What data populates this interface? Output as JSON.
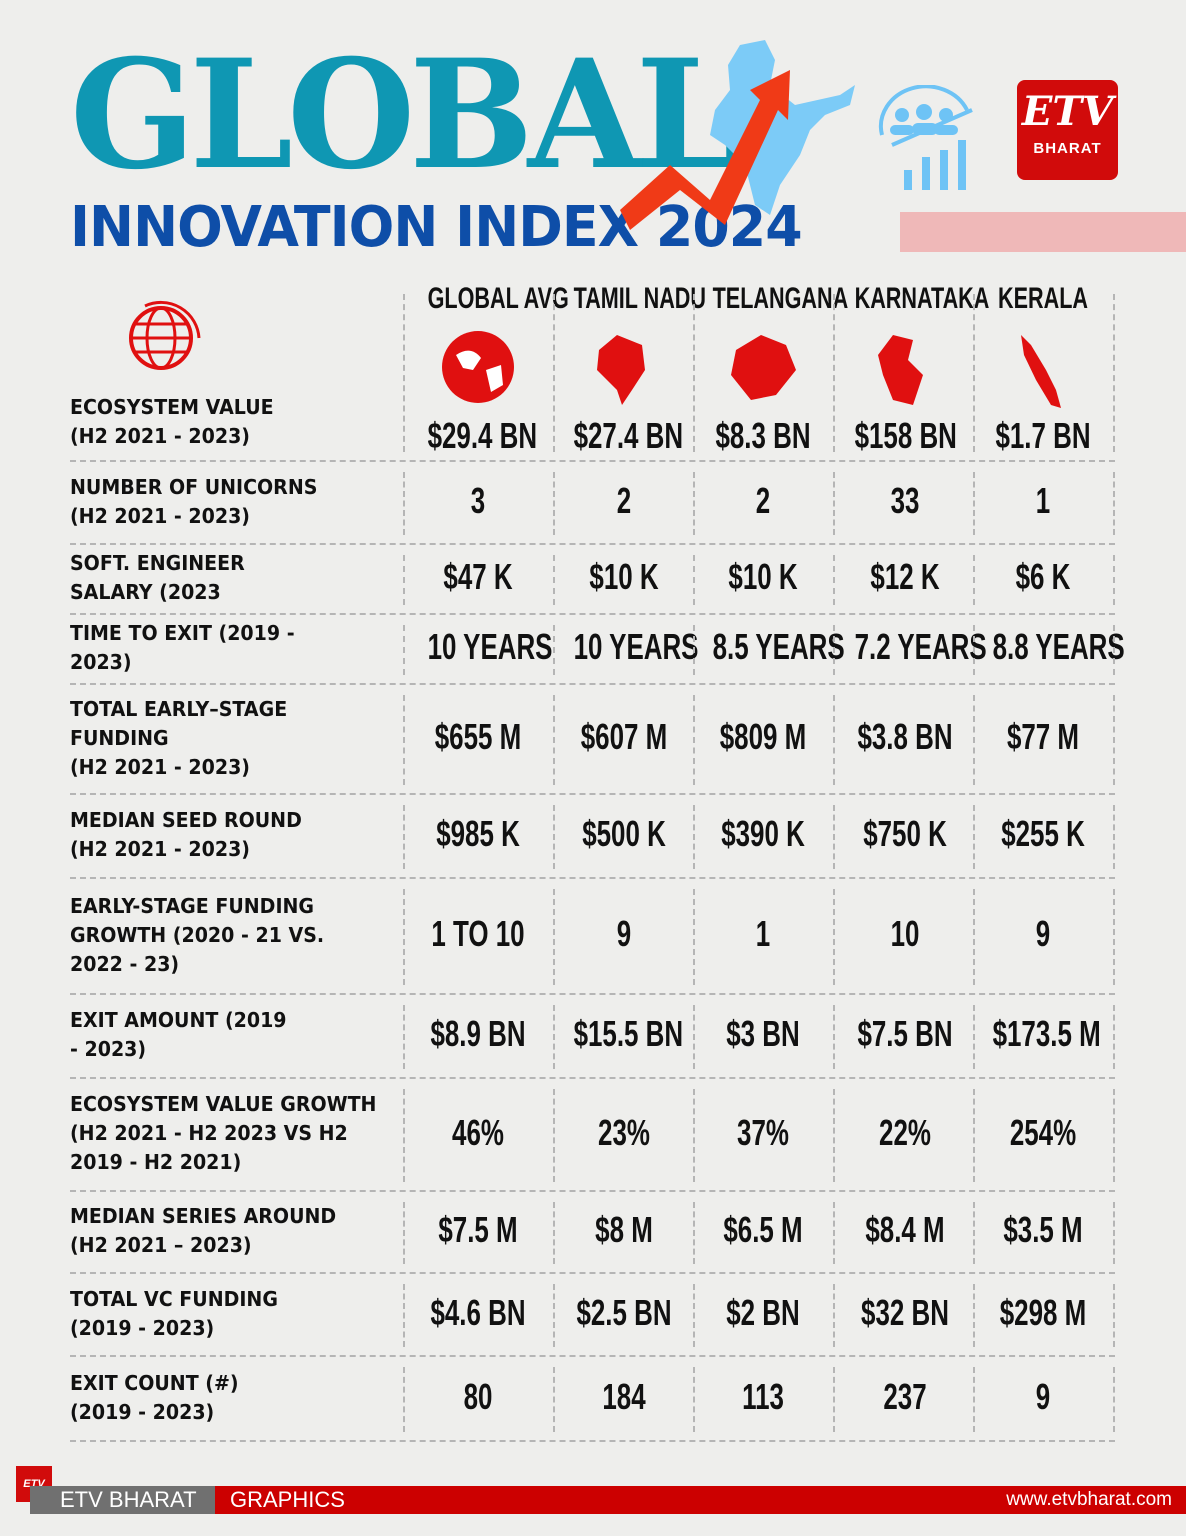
{
  "header": {
    "title_line1": "GLOBAL",
    "title_line2": "INNOVATION INDEX 2024",
    "logo_text": "BHARAT",
    "logo_mark": "ETV"
  },
  "columns": [
    "GLOBAL AVG",
    "TAMIL NADU",
    "TELANGANA",
    "KARNATAKA",
    "KERALA"
  ],
  "rows": [
    {
      "label": "ECOSYSTEM VALUE\n(H2 2021 - 2023)",
      "values": [
        "$29.4 BN",
        "$27.4 BN",
        "$8.3 BN",
        "$158 BN",
        "$1.7 BN"
      ]
    },
    {
      "label": "NUMBER OF UNICORNS\n(H2 2021 - 2023)",
      "values": [
        "3",
        "2",
        "2",
        "33",
        "1"
      ]
    },
    {
      "label": "SOFT. ENGINEER\nSALARY (2023",
      "values": [
        "$47 K",
        "$10 K",
        "$10 K",
        "$12 K",
        "$6 K"
      ]
    },
    {
      "label": "TIME TO EXIT (2019 -\n2023)",
      "values": [
        "10 YEARS",
        "10 YEARS",
        "8.5 YEARS",
        "7.2 YEARS",
        "8.8 YEARS"
      ]
    },
    {
      "label": "TOTAL EARLY–STAGE\nFUNDING\n(H2 2021 - 2023)",
      "values": [
        "$655 M",
        "$607 M",
        "$809 M",
        "$3.8 BN",
        "$77 M"
      ]
    },
    {
      "label": "MEDIAN SEED ROUND\n(H2 2021 - 2023)",
      "values": [
        "$985 K",
        "$500 K",
        "$390 K",
        "$750 K",
        "$255 K"
      ]
    },
    {
      "label": "EARLY-STAGE FUNDING\nGROWTH (2020 - 21 VS.\n2022 - 23)",
      "values": [
        "1 TO 10",
        "9",
        "1",
        "10",
        "9"
      ]
    },
    {
      "label": "EXIT AMOUNT (2019\n- 2023)",
      "values": [
        "$8.9 BN",
        "$15.5 BN",
        "$3 BN",
        "$7.5 BN",
        "$173.5 M"
      ]
    },
    {
      "label": "ECOSYSTEM VALUE GROWTH\n(H2 2021 - H2 2023 VS H2\n2019 - H2 2021)",
      "values": [
        "46%",
        "23%",
        "37%",
        "22%",
        "254%"
      ]
    },
    {
      "label": "MEDIAN SERIES AROUND\n(H2 2021 – 2023)",
      "values": [
        "$7.5 M",
        "$8 M",
        "$6.5 M",
        "$8.4 M",
        "$3.5 M"
      ]
    },
    {
      "label": "TOTAL VC FUNDING\n(2019 - 2023)",
      "values": [
        "$4.6 BN",
        "$2.5 BN",
        "$2 BN",
        "$32 BN",
        "$298 M"
      ]
    },
    {
      "label": "EXIT COUNT (#)\n(2019 - 2023)",
      "values": [
        "80",
        "184",
        "113",
        "237",
        "9"
      ]
    }
  ],
  "footer": {
    "brand": "ETV BHARAT",
    "section": "GRAPHICS",
    "url": "www.etvbharat.com"
  },
  "colors": {
    "title_teal": "#0f97b3",
    "title_blue": "#0e4ea8",
    "brand_red": "#d10b0b",
    "icon_red": "#e01010",
    "icon_blue": "#6ec3f5"
  }
}
